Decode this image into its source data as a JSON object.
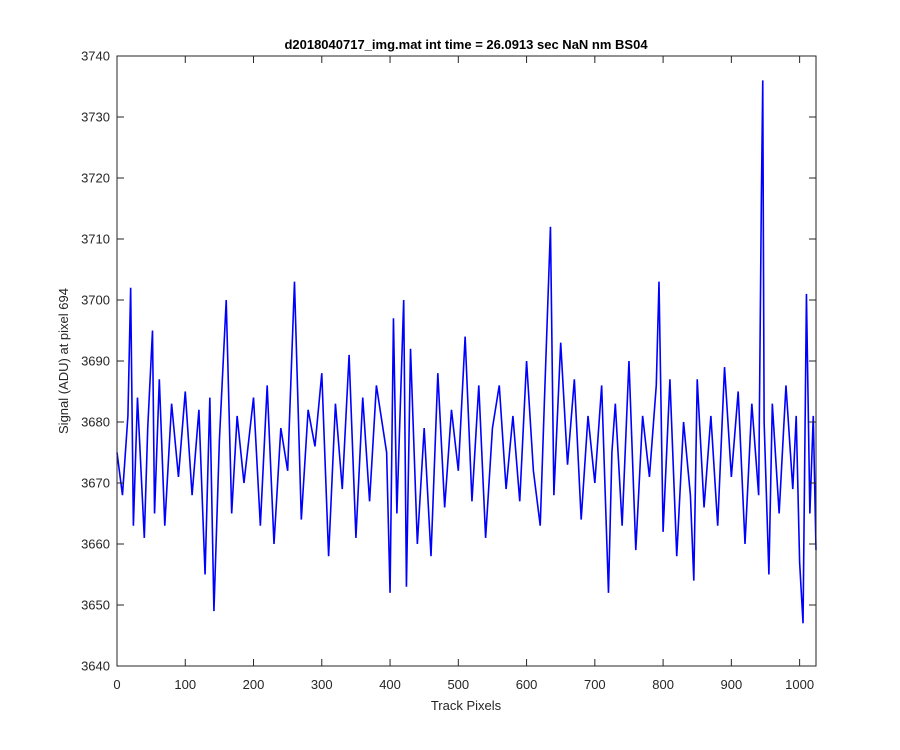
{
  "chart_data": {
    "type": "line",
    "title": "d2018040717_img.mat int time = 26.0913 sec  NaN nm BS04",
    "xlabel": "Track Pixels",
    "ylabel": "Signal (ADU) at pixel 694",
    "xlim": [
      0,
      1024
    ],
    "ylim": [
      3640,
      3740
    ],
    "xticks": [
      0,
      100,
      200,
      300,
      400,
      500,
      600,
      700,
      800,
      900,
      1000
    ],
    "yticks": [
      3640,
      3650,
      3660,
      3670,
      3680,
      3690,
      3700,
      3710,
      3720,
      3730,
      3740
    ],
    "grid": false,
    "legend": "none",
    "line_color": "#0000ff",
    "series": [
      {
        "x": [
          0,
          8,
          16,
          20,
          24,
          30,
          40,
          45,
          52,
          55,
          62,
          70,
          80,
          90,
          100,
          110,
          120,
          129,
          136,
          142,
          150,
          160,
          168,
          176,
          186,
          200,
          210,
          220,
          230,
          240,
          250,
          260,
          270,
          280,
          290,
          300,
          310,
          320,
          330,
          340,
          350,
          360,
          370,
          380,
          395,
          400,
          405,
          410,
          420,
          424,
          430,
          440,
          450,
          460,
          470,
          480,
          490,
          500,
          510,
          520,
          530,
          540,
          550,
          560,
          570,
          580,
          590,
          600,
          610,
          620,
          626,
          635,
          640,
          650,
          660,
          670,
          680,
          690,
          700,
          710,
          720,
          725,
          730,
          740,
          750,
          760,
          770,
          780,
          790,
          794,
          800,
          810,
          820,
          830,
          840,
          845,
          850,
          860,
          870,
          880,
          890,
          900,
          910,
          920,
          930,
          940,
          944,
          946,
          948,
          955,
          960,
          970,
          980,
          990,
          995,
          1000,
          1005,
          1010,
          1015,
          1020,
          1024
        ],
        "values": [
          3675,
          3668,
          3681,
          3702,
          3663,
          3684,
          3661,
          3679,
          3695,
          3665,
          3687,
          3663,
          3683,
          3671,
          3685,
          3668,
          3682,
          3655,
          3684,
          3649,
          3677,
          3700,
          3665,
          3681,
          3670,
          3684,
          3663,
          3686,
          3660,
          3679,
          3672,
          3703,
          3664,
          3682,
          3676,
          3688,
          3658,
          3683,
          3669,
          3691,
          3661,
          3684,
          3667,
          3686,
          3675,
          3652,
          3697,
          3665,
          3700,
          3653,
          3692,
          3660,
          3679,
          3658,
          3688,
          3666,
          3682,
          3672,
          3694,
          3667,
          3686,
          3661,
          3679,
          3686,
          3669,
          3681,
          3667,
          3690,
          3672,
          3663,
          3683,
          3712,
          3668,
          3693,
          3673,
          3687,
          3664,
          3681,
          3670,
          3686,
          3652,
          3675,
          3683,
          3663,
          3690,
          3659,
          3681,
          3671,
          3686,
          3703,
          3662,
          3687,
          3658,
          3680,
          3668,
          3654,
          3687,
          3666,
          3681,
          3663,
          3689,
          3671,
          3685,
          3660,
          3683,
          3668,
          3717,
          3736,
          3680,
          3655,
          3683,
          3665,
          3686,
          3669,
          3681,
          3657,
          3647,
          3701,
          3665,
          3681,
          3659
        ]
      }
    ]
  }
}
